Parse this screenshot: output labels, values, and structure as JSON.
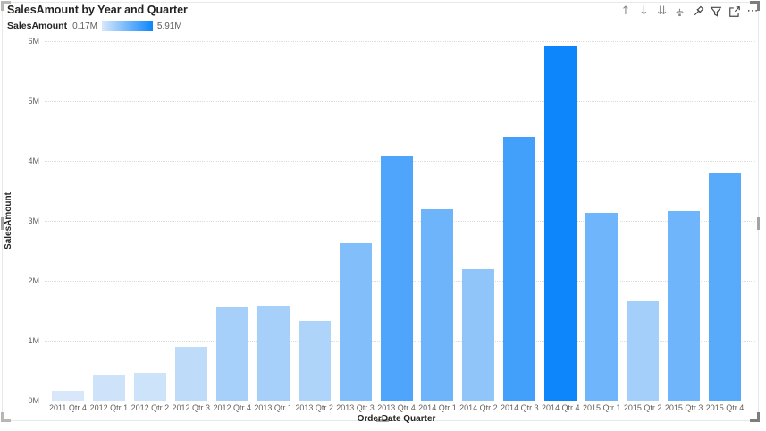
{
  "visual": {
    "title": "SalesAmount by Year and Quarter",
    "header": {
      "icons": [
        {
          "name": "drill-up-icon",
          "glyph": "↑"
        },
        {
          "name": "drill-down-icon",
          "glyph": "↓"
        },
        {
          "name": "go-to-next-level-icon",
          "glyph": "⇊"
        },
        {
          "name": "expand-all-icon",
          "glyph": ""
        },
        {
          "name": "pin-icon",
          "glyph": ""
        },
        {
          "name": "filter-icon",
          "glyph": ""
        },
        {
          "name": "focus-mode-icon",
          "glyph": ""
        },
        {
          "name": "more-options-icon",
          "glyph": "⋯"
        }
      ]
    }
  },
  "legend": {
    "label": "SalesAmount",
    "min_label": "0.17M",
    "max_label": "5.91M",
    "gradient_start": "#D8E8FA",
    "gradient_end": "#0D86FB"
  },
  "chart_data": {
    "type": "bar",
    "title": "SalesAmount by Year and Quarter",
    "categories": [
      "2011 Qtr 4",
      "2012 Qtr 1",
      "2012 Qtr 2",
      "2012 Qtr 3",
      "2012 Qtr 4",
      "2013 Qtr 1",
      "2013 Qtr 2",
      "2013 Qtr 3",
      "2013 Qtr 4",
      "2014 Qtr 1",
      "2014 Qtr 2",
      "2014 Qtr 3",
      "2014 Qtr 4",
      "2015 Qtr 1",
      "2015 Qtr 2",
      "2015 Qtr 3",
      "2015 Qtr 4"
    ],
    "values": [
      0.17,
      0.44,
      0.47,
      0.9,
      1.57,
      1.58,
      1.33,
      2.62,
      4.07,
      3.19,
      2.2,
      4.41,
      5.91,
      3.13,
      1.65,
      3.16,
      3.79
    ],
    "unit": "M",
    "xlabel": "OrderDate Quarter",
    "ylabel": "SalesAmount",
    "ylim": [
      0,
      6
    ],
    "yticks": [
      "0M",
      "1M",
      "2M",
      "3M",
      "4M",
      "5M",
      "6M"
    ],
    "grid": true,
    "legend_position": "top-left",
    "color_scale": {
      "min_value": 0.17,
      "max_value": 5.91,
      "min_color": "#D8E8FA",
      "max_color": "#0D86FB"
    }
  }
}
